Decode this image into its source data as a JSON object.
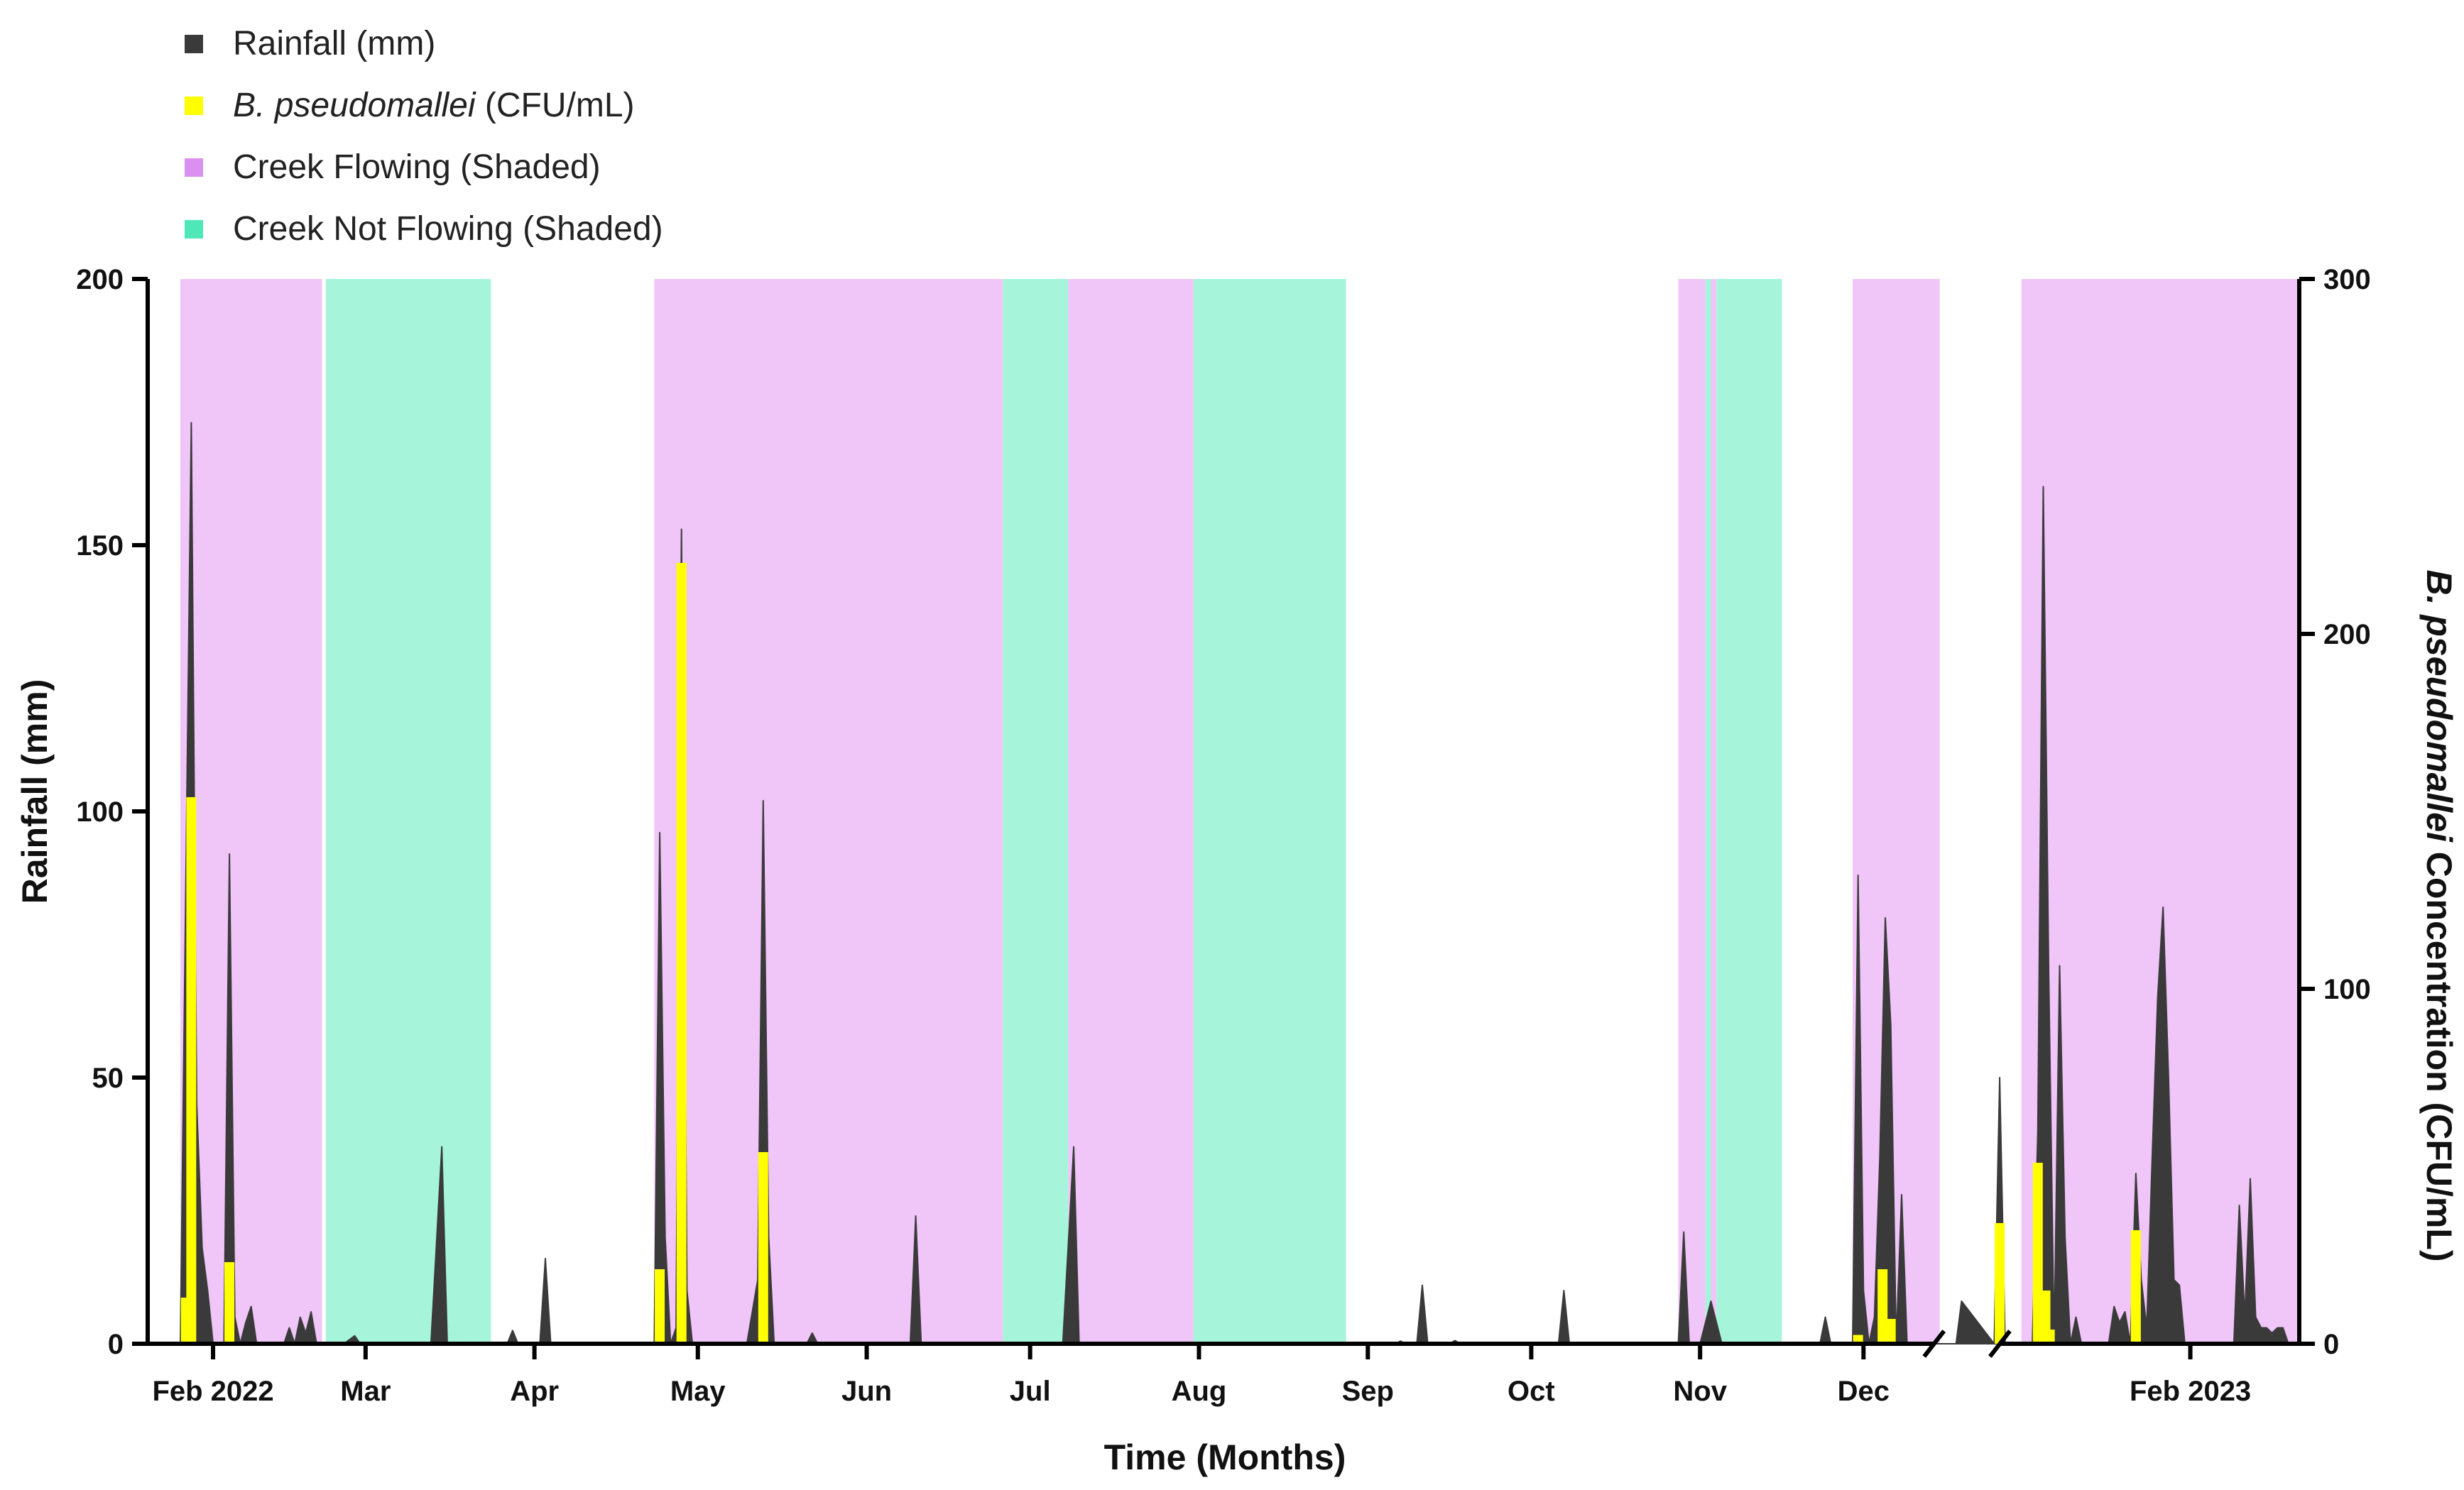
{
  "chart_data": {
    "type": "area+bar",
    "legend": [
      {
        "label_italic": "",
        "label": "Rainfall (mm)",
        "color": "#3a3a3a"
      },
      {
        "label_italic": "B. pseudomallei",
        "label": " (CFU/mL)",
        "color": "#ffff00"
      },
      {
        "label_italic": "",
        "label": "Creek Flowing (Shaded)",
        "color": "#d990f0"
      },
      {
        "label_italic": "",
        "label": "Creek Not Flowing (Shaded)",
        "color": "#4ee8b8"
      }
    ],
    "xlabel": "Time (Months)",
    "ylabel_left": "Rainfall (mm)",
    "ylabel_right_italic": "B. pseudomallei",
    "ylabel_right": " Concentration (CFU/mL)",
    "ylim_left": [
      0,
      200
    ],
    "ylim_right": [
      0,
      300
    ],
    "yticks_left": [
      "0",
      "50",
      "100",
      "150",
      "200"
    ],
    "yticks_right": [
      "0",
      "100",
      "200",
      "300"
    ],
    "x_unit": "days since 2022-01-20 (axis broken between late Dec 2022 and mid Jan 2023)",
    "xlim": [
      0,
      395
    ],
    "axis_break": [
      329,
      339
    ],
    "xticks": [
      {
        "label": "Feb 2022",
        "x": 12
      },
      {
        "label": "Mar",
        "x": 40
      },
      {
        "label": "Apr",
        "x": 71
      },
      {
        "label": "May",
        "x": 101
      },
      {
        "label": "Jun",
        "x": 132
      },
      {
        "label": "Jul",
        "x": 162
      },
      {
        "label": "Aug",
        "x": 193
      },
      {
        "label": "Sep",
        "x": 224
      },
      {
        "label": "Oct",
        "x": 254
      },
      {
        "label": "Nov",
        "x": 285
      },
      {
        "label": "Dec",
        "x": 315
      },
      {
        "label": "Feb 2023",
        "x": 375
      }
    ],
    "creek_periods": [
      {
        "status": "flowing",
        "start": 6,
        "end": 32
      },
      {
        "status": "not_flowing",
        "start": 32.7,
        "end": 63
      },
      {
        "status": "flowing",
        "start": 93,
        "end": 157
      },
      {
        "status": "not_flowing",
        "start": 157,
        "end": 169
      },
      {
        "status": "flowing",
        "start": 169,
        "end": 192
      },
      {
        "status": "not_flowing",
        "start": 192,
        "end": 220
      },
      {
        "status": "flowing",
        "start": 281,
        "end": 286
      },
      {
        "status": "not_flowing",
        "start": 286,
        "end": 287
      },
      {
        "status": "flowing",
        "start": 287,
        "end": 288
      },
      {
        "status": "not_flowing",
        "start": 288,
        "end": 300
      },
      {
        "status": "flowing",
        "start": 313,
        "end": 338
      },
      {
        "status": "flowing",
        "start": 344,
        "end": 395
      }
    ],
    "rainfall": [
      [
        0,
        0
      ],
      [
        6,
        0
      ],
      [
        8,
        173
      ],
      [
        9,
        45
      ],
      [
        10,
        18
      ],
      [
        11,
        10
      ],
      [
        12,
        0
      ],
      [
        14,
        0
      ],
      [
        15,
        92
      ],
      [
        16,
        5
      ],
      [
        17,
        0
      ],
      [
        18,
        4
      ],
      [
        19,
        7
      ],
      [
        20,
        0
      ],
      [
        25,
        0
      ],
      [
        26,
        3
      ],
      [
        27,
        0
      ],
      [
        28,
        5
      ],
      [
        29,
        2
      ],
      [
        30,
        6
      ],
      [
        31,
        0
      ],
      [
        36,
        0
      ],
      [
        38,
        1.5
      ],
      [
        39,
        0
      ],
      [
        52,
        0
      ],
      [
        54,
        37
      ],
      [
        55,
        0
      ],
      [
        66,
        0
      ],
      [
        67,
        2.5
      ],
      [
        68,
        0
      ],
      [
        72,
        0
      ],
      [
        73,
        16
      ],
      [
        74,
        0
      ],
      [
        93,
        0
      ],
      [
        94,
        96
      ],
      [
        95,
        20
      ],
      [
        96,
        0
      ],
      [
        97,
        3
      ],
      [
        98,
        153
      ],
      [
        99,
        10
      ],
      [
        100,
        0
      ],
      [
        110,
        0
      ],
      [
        112,
        12
      ],
      [
        113,
        102
      ],
      [
        114,
        20
      ],
      [
        115,
        0
      ],
      [
        121,
        0
      ],
      [
        122,
        2
      ],
      [
        123,
        0
      ],
      [
        140,
        0
      ],
      [
        141,
        24
      ],
      [
        142,
        0
      ],
      [
        168,
        0
      ],
      [
        170,
        37
      ],
      [
        171,
        0
      ],
      [
        229,
        0
      ],
      [
        230,
        0.5
      ],
      [
        231,
        0
      ],
      [
        233,
        0
      ],
      [
        234,
        11
      ],
      [
        235,
        0
      ],
      [
        239,
        0
      ],
      [
        240,
        0.6
      ],
      [
        241,
        0
      ],
      [
        259,
        0
      ],
      [
        260,
        10
      ],
      [
        261,
        0
      ],
      [
        281,
        0
      ],
      [
        282,
        21
      ],
      [
        283,
        0
      ],
      [
        285,
        0
      ],
      [
        287,
        8
      ],
      [
        288,
        4
      ],
      [
        289,
        0
      ],
      [
        307,
        0
      ],
      [
        308,
        5
      ],
      [
        309,
        0
      ],
      [
        313,
        0
      ],
      [
        314,
        88
      ],
      [
        315,
        10
      ],
      [
        316,
        0
      ],
      [
        317,
        5
      ],
      [
        318,
        35
      ],
      [
        319,
        80
      ],
      [
        320,
        60
      ],
      [
        321,
        0
      ],
      [
        322,
        28
      ],
      [
        323,
        0
      ],
      [
        329,
        0
      ],
      [
        332,
        0
      ],
      [
        333,
        8
      ],
      [
        339,
        0
      ],
      [
        340,
        50
      ],
      [
        341,
        0
      ],
      [
        346,
        0
      ],
      [
        347,
        40
      ],
      [
        348,
        161
      ],
      [
        349,
        70
      ],
      [
        350,
        0
      ],
      [
        351,
        71
      ],
      [
        352,
        20
      ],
      [
        353,
        0
      ],
      [
        354,
        5
      ],
      [
        355,
        0
      ],
      [
        360,
        0
      ],
      [
        361,
        7
      ],
      [
        362,
        4
      ],
      [
        363,
        6
      ],
      [
        364,
        0
      ],
      [
        365,
        32
      ],
      [
        366,
        12
      ],
      [
        367,
        3
      ],
      [
        368,
        35
      ],
      [
        369,
        65
      ],
      [
        370,
        82
      ],
      [
        371,
        50
      ],
      [
        372,
        12
      ],
      [
        373,
        11
      ],
      [
        374,
        0
      ],
      [
        383,
        0
      ],
      [
        384,
        26
      ],
      [
        385,
        5
      ],
      [
        386,
        31
      ],
      [
        387,
        5
      ],
      [
        388,
        3
      ],
      [
        389,
        3
      ],
      [
        390,
        2
      ],
      [
        391,
        3
      ],
      [
        392,
        3
      ],
      [
        393,
        0
      ],
      [
        395,
        0
      ]
    ],
    "b_pseudomallei": [
      {
        "x": 7,
        "value": 13
      },
      {
        "x": 8,
        "value": 154
      },
      {
        "x": 15,
        "value": 23
      },
      {
        "x": 94,
        "value": 21
      },
      {
        "x": 98,
        "value": 220
      },
      {
        "x": 113,
        "value": 54
      },
      {
        "x": 314,
        "value": 2.5
      },
      {
        "x": 318.5,
        "value": 21
      },
      {
        "x": 320,
        "value": 7
      },
      {
        "x": 340,
        "value": 34
      },
      {
        "x": 347,
        "value": 51
      },
      {
        "x": 348.4,
        "value": 15
      },
      {
        "x": 349.2,
        "value": 4
      },
      {
        "x": 365,
        "value": 32
      }
    ]
  }
}
